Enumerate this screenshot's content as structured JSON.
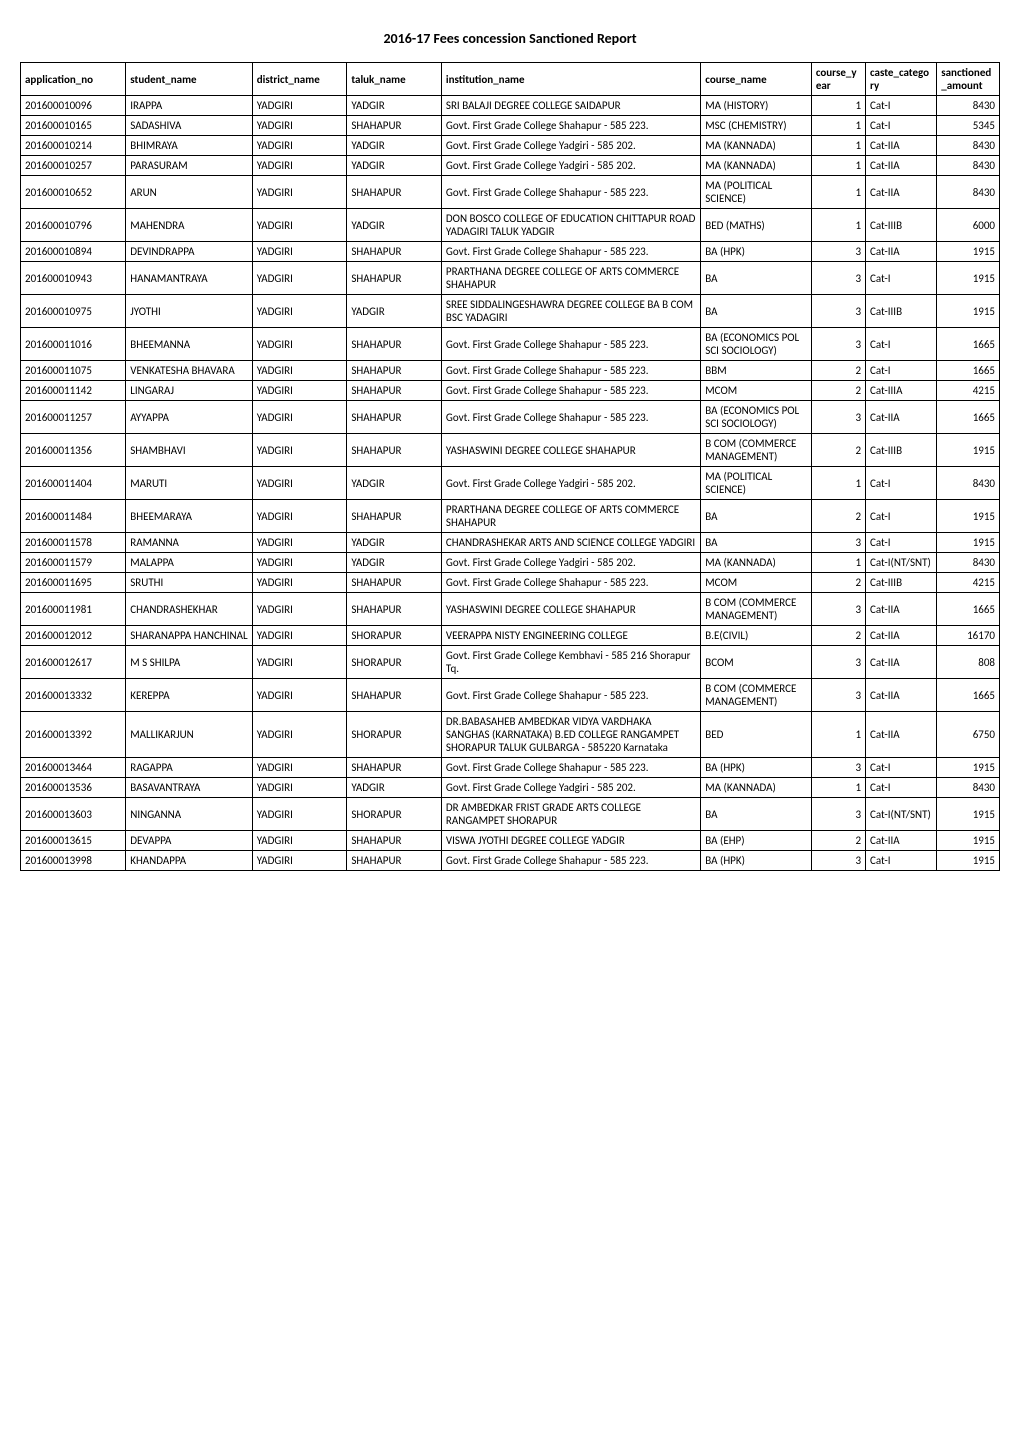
{
  "title": "2016-17 Fees concession Sanctioned Report",
  "columns": [
    "application_no",
    "student_name",
    "district_name",
    "taluk_name",
    "institution_name",
    "course_name",
    "course_year",
    "caste_category",
    "sanctioned_amount"
  ],
  "rows": [
    [
      "201600010096",
      "IRAPPA",
      "YADGIRI",
      "YADGIR",
      "SRI BALAJI DEGREE COLLEGE SAIDAPUR",
      "MA (HISTORY)",
      "1",
      "Cat-I",
      "8430"
    ],
    [
      "201600010165",
      "SADASHIVA",
      "YADGIRI",
      "SHAHAPUR",
      "Govt. First Grade College   Shahapur - 585 223.",
      "MSC (CHEMISTRY)",
      "1",
      "Cat-I",
      "5345"
    ],
    [
      "201600010214",
      "BHIMRAYA",
      "YADGIRI",
      "YADGIR",
      "Govt. First Grade College  Yadgiri - 585 202.",
      "MA (KANNADA)",
      "1",
      "Cat-IIA",
      "8430"
    ],
    [
      "201600010257",
      "PARASURAM",
      "YADGIRI",
      "YADGIR",
      "Govt. First Grade College  Yadgiri - 585 202.",
      "MA (KANNADA)",
      "1",
      "Cat-IIA",
      "8430"
    ],
    [
      "201600010652",
      "ARUN",
      "YADGIRI",
      "SHAHAPUR",
      "Govt. First Grade College   Shahapur - 585 223.",
      "MA (POLITICAL SCIENCE)",
      "1",
      "Cat-IIA",
      "8430"
    ],
    [
      "201600010796",
      "MAHENDRA",
      "YADGIRI",
      "YADGIR",
      "DON BOSCO COLLEGE OF EDUCATION CHITTAPUR ROAD YADAGIRI TALUK YADGIR",
      "BED (MATHS)",
      "1",
      "Cat-IIIB",
      "6000"
    ],
    [
      "201600010894",
      "DEVINDRAPPA",
      "YADGIRI",
      "SHAHAPUR",
      "Govt. First Grade College   Shahapur - 585 223.",
      "BA (HPK)",
      "3",
      "Cat-IIA",
      "1915"
    ],
    [
      "201600010943",
      "HANAMANTRAYA",
      "YADGIRI",
      "SHAHAPUR",
      "PRARTHANA DEGREE COLLEGE OF ARTS COMMERCE SHAHAPUR",
      "BA",
      "3",
      "Cat-I",
      "1915"
    ],
    [
      "201600010975",
      "JYOTHI",
      "YADGIRI",
      "YADGIR",
      "SREE SIDDALINGESHAWRA DEGREE COLLEGE BA B COM BSC YADAGIRI",
      "BA",
      "3",
      "Cat-IIIB",
      "1915"
    ],
    [
      "201600011016",
      "BHEEMANNA",
      "YADGIRI",
      "SHAHAPUR",
      "Govt. First Grade College   Shahapur - 585 223.",
      "BA (ECONOMICS POL SCI SOCIOLOGY)",
      "3",
      "Cat-I",
      "1665"
    ],
    [
      "201600011075",
      "VENKATESHA BHAVARA",
      "YADGIRI",
      "SHAHAPUR",
      "Govt. First Grade College   Shahapur - 585 223.",
      "BBM",
      "2",
      "Cat-I",
      "1665"
    ],
    [
      "201600011142",
      "LINGARAJ",
      "YADGIRI",
      "SHAHAPUR",
      "Govt. First Grade College   Shahapur - 585 223.",
      "MCOM",
      "2",
      "Cat-IIIA",
      "4215"
    ],
    [
      "201600011257",
      "AYYAPPA",
      "YADGIRI",
      "SHAHAPUR",
      "Govt. First Grade College   Shahapur - 585 223.",
      "BA (ECONOMICS POL SCI SOCIOLOGY)",
      "3",
      "Cat-IIA",
      "1665"
    ],
    [
      "201600011356",
      "SHAMBHAVI",
      "YADGIRI",
      "SHAHAPUR",
      "YASHASWINI DEGREE COLLEGE SHAHAPUR",
      "B COM (COMMERCE MANAGEMENT)",
      "2",
      "Cat-IIIB",
      "1915"
    ],
    [
      "201600011404",
      "MARUTI",
      "YADGIRI",
      "YADGIR",
      "Govt. First Grade College  Yadgiri - 585 202.",
      "MA (POLITICAL SCIENCE)",
      "1",
      "Cat-I",
      "8430"
    ],
    [
      "201600011484",
      "BHEEMARAYA",
      "YADGIRI",
      "SHAHAPUR",
      "PRARTHANA DEGREE COLLEGE OF ARTS COMMERCE SHAHAPUR",
      "BA",
      "2",
      "Cat-I",
      "1915"
    ],
    [
      "201600011578",
      "RAMANNA",
      "YADGIRI",
      "YADGIR",
      "CHANDRASHEKAR ARTS AND SCIENCE COLLEGE YADGIRI",
      "BA",
      "3",
      "Cat-I",
      "1915"
    ],
    [
      "201600011579",
      "MALAPPA",
      "YADGIRI",
      "YADGIR",
      "Govt. First Grade College  Yadgiri - 585 202.",
      "MA (KANNADA)",
      "1",
      "Cat-I(NT/SNT)",
      "8430"
    ],
    [
      "201600011695",
      "SRUTHI",
      "YADGIRI",
      "SHAHAPUR",
      "Govt. First Grade College   Shahapur - 585 223.",
      "MCOM",
      "2",
      "Cat-IIIB",
      "4215"
    ],
    [
      "201600011981",
      "CHANDRASHEKHAR",
      "YADGIRI",
      "SHAHAPUR",
      "YASHASWINI DEGREE COLLEGE SHAHAPUR",
      "B COM (COMMERCE MANAGEMENT)",
      "3",
      "Cat-IIA",
      "1665"
    ],
    [
      "201600012012",
      "SHARANAPPA HANCHINAL",
      "YADGIRI",
      "SHORAPUR",
      "VEERAPPA NISTY ENGINEERING COLLEGE",
      "B.E(CIVIL)",
      "2",
      "Cat-IIA",
      "16170"
    ],
    [
      "201600012617",
      "M S SHILPA",
      "YADGIRI",
      "SHORAPUR",
      "Govt. First Grade College  Kembhavi - 585 216 Shorapur Tq.",
      "BCOM",
      "3",
      "Cat-IIA",
      "808"
    ],
    [
      "201600013332",
      "KEREPPA",
      "YADGIRI",
      "SHAHAPUR",
      "Govt. First Grade College   Shahapur - 585 223.",
      "B COM (COMMERCE MANAGEMENT)",
      "3",
      "Cat-IIA",
      "1665"
    ],
    [
      "201600013392",
      "MALLIKARJUN",
      "YADGIRI",
      "SHORAPUR",
      "DR.BABASAHEB AMBEDKAR VIDYA VARDHAKA SANGHAS (KARNATAKA) B.ED COLLEGE RANGAMPET SHORAPUR TALUK  GULBARGA - 585220 Karnataka",
      "BED",
      "1",
      "Cat-IIA",
      "6750"
    ],
    [
      "201600013464",
      "RAGAPPA",
      "YADGIRI",
      "SHAHAPUR",
      "Govt. First Grade College   Shahapur - 585 223.",
      "BA (HPK)",
      "3",
      "Cat-I",
      "1915"
    ],
    [
      "201600013536",
      "BASAVANTRAYA",
      "YADGIRI",
      "YADGIR",
      "Govt. First Grade College  Yadgiri - 585 202.",
      "MA (KANNADA)",
      "1",
      "Cat-I",
      "8430"
    ],
    [
      "201600013603",
      "NINGANNA",
      "YADGIRI",
      "SHORAPUR",
      "DR AMBEDKAR FRIST GRADE ARTS COLLEGE RANGAMPET SHORAPUR",
      "BA",
      "3",
      "Cat-I(NT/SNT)",
      "1915"
    ],
    [
      "201600013615",
      "DEVAPPA",
      "YADGIRI",
      "SHAHAPUR",
      "VISWA JYOTHI DEGREE COLLEGE YADGIR",
      "BA (EHP)",
      "2",
      "Cat-IIA",
      "1915"
    ],
    [
      "201600013998",
      "KHANDAPPA",
      "YADGIRI",
      "SHAHAPUR",
      "Govt. First Grade College   Shahapur - 585 223.",
      "BA (HPK)",
      "3",
      "Cat-I",
      "1915"
    ]
  ]
}
